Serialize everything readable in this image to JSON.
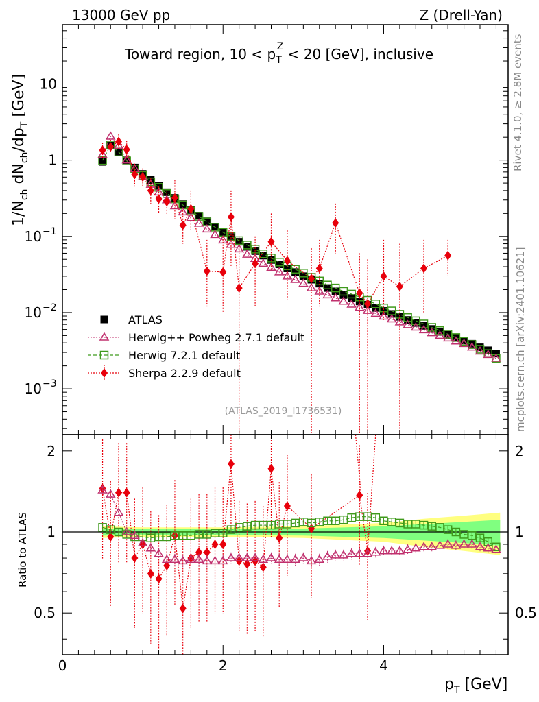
{
  "header": {
    "left": "13000 GeV pp",
    "right": "Z (Drell-Yan)",
    "title": "Toward region, 10 < p",
    "title_sub": "T",
    "title_sup": "Z",
    "title_rest": " < 20 [GeV], inclusive",
    "side_top": "Rivet 4.1.0, ≥ 2.8M events",
    "side_bottom": "mcplots.cern.ch [arXiv:2401.10621]",
    "analysis_id": "(ATLAS_2019_I1736531)"
  },
  "chart_data": {
    "type": "scatter",
    "xlabel": "p",
    "xlabel_sub": "T",
    "xlabel_unit": " [GeV]",
    "ylabel_main": "1/N",
    "ylabel_rest": "ch",
    "ylabel_text": "1/N_ch dN_ch/dp_T [GeV]",
    "ylabel_ratio": "Ratio to ATLAS",
    "xlim": [
      0,
      5.55
    ],
    "ylim_main": [
      0.00025,
      60
    ],
    "ylim_ratio": [
      0.35,
      2.3
    ],
    "x_ticks": [
      0,
      2,
      4
    ],
    "x_tick_labels": [
      "0",
      "2",
      "4"
    ],
    "y_main_tick_labels": [
      {
        "value": 10,
        "base": "10",
        "exp": ""
      },
      {
        "value": 1,
        "base": "1",
        "exp": ""
      },
      {
        "value": 0.1,
        "base": "10",
        "exp": "−1"
      },
      {
        "value": 0.01,
        "base": "10",
        "exp": "−2"
      },
      {
        "value": 0.001,
        "base": "10",
        "exp": "−3"
      }
    ],
    "y_ratio_ticks": [
      0.5,
      1,
      2
    ],
    "y_ratio_tick_labels": [
      "0.5",
      "1",
      "2"
    ],
    "legend": [
      {
        "name": "ATLAS",
        "color": "#000000",
        "marker": "square"
      },
      {
        "name": "Herwig++ Powheg 2.7.1 default",
        "color": "#c0306e",
        "marker": "triangle"
      },
      {
        "name": "Herwig 7.2.1 default",
        "color": "#3f9a1c",
        "marker": "open-square"
      },
      {
        "name": "Sherpa 2.2.9 default",
        "color": "#e8000b",
        "marker": "diamond"
      }
    ],
    "x": [
      0.5,
      0.6,
      0.7,
      0.8,
      0.9,
      1.0,
      1.1,
      1.2,
      1.3,
      1.4,
      1.5,
      1.6,
      1.7,
      1.8,
      1.9,
      2.0,
      2.1,
      2.2,
      2.3,
      2.4,
      2.5,
      2.6,
      2.7,
      2.8,
      2.9,
      3.0,
      3.1,
      3.2,
      3.3,
      3.4,
      3.5,
      3.6,
      3.7,
      3.8,
      3.9,
      4.0,
      4.1,
      4.2,
      4.3,
      4.4,
      4.5,
      4.6,
      4.7,
      4.8,
      4.9,
      5.0,
      5.1,
      5.2,
      5.3,
      5.4
    ],
    "series": [
      {
        "name": "ATLAS",
        "values": [
          0.95,
          1.55,
          1.28,
          1.0,
          0.8,
          0.66,
          0.55,
          0.46,
          0.38,
          0.32,
          0.265,
          0.222,
          0.187,
          0.158,
          0.134,
          0.114,
          0.098,
          0.085,
          0.073,
          0.064,
          0.056,
          0.049,
          0.043,
          0.038,
          0.034,
          0.03,
          0.027,
          0.024,
          0.021,
          0.019,
          0.017,
          0.0155,
          0.014,
          0.0127,
          0.0115,
          0.0105,
          0.0096,
          0.0088,
          0.008,
          0.0073,
          0.0067,
          0.0061,
          0.0056,
          0.0051,
          0.0047,
          0.0043,
          0.0039,
          0.0035,
          0.0032,
          0.0029
        ]
      },
      {
        "name": "Herwig++ Powheg 2.7.1 default",
        "values": [
          1.18,
          2.05,
          1.55,
          1.0,
          0.77,
          0.6,
          0.48,
          0.38,
          0.3,
          0.25,
          0.208,
          0.175,
          0.148,
          0.124,
          0.105,
          0.089,
          0.078,
          0.068,
          0.058,
          0.051,
          0.044,
          0.039,
          0.034,
          0.03,
          0.027,
          0.024,
          0.021,
          0.019,
          0.017,
          0.0155,
          0.014,
          0.0128,
          0.0116,
          0.0106,
          0.0097,
          0.0089,
          0.0082,
          0.0075,
          0.0069,
          0.0064,
          0.0059,
          0.0054,
          0.005,
          0.0046,
          0.0042,
          0.0039,
          0.0035,
          0.0031,
          0.0028,
          0.0025
        ]
      },
      {
        "name": "Herwig 7.2.1 default",
        "values": [
          0.99,
          1.58,
          1.28,
          0.98,
          0.77,
          0.63,
          0.52,
          0.44,
          0.365,
          0.31,
          0.258,
          0.216,
          0.183,
          0.155,
          0.132,
          0.113,
          0.1,
          0.088,
          0.077,
          0.068,
          0.059,
          0.052,
          0.046,
          0.041,
          0.037,
          0.033,
          0.029,
          0.026,
          0.023,
          0.021,
          0.019,
          0.0175,
          0.016,
          0.0145,
          0.013,
          0.0115,
          0.0105,
          0.0095,
          0.0086,
          0.0078,
          0.0071,
          0.0064,
          0.0058,
          0.0052,
          0.0047,
          0.0042,
          0.0038,
          0.0033,
          0.0029,
          0.0025
        ]
      },
      {
        "name": "Sherpa 2.2.9 default",
        "x": [
          0.5,
          0.6,
          0.7,
          0.8,
          0.9,
          1.0,
          1.1,
          1.2,
          1.3,
          1.4,
          1.5,
          1.6,
          1.8,
          2.0,
          2.1,
          2.2,
          2.4,
          2.6,
          2.8,
          3.1,
          3.2,
          3.4,
          3.7,
          3.8,
          4.0,
          4.2,
          4.5,
          4.8
        ],
        "values": [
          1.35,
          1.5,
          1.75,
          1.38,
          0.65,
          0.6,
          0.4,
          0.31,
          0.285,
          0.32,
          0.14,
          0.23,
          0.035,
          0.034,
          0.18,
          0.021,
          0.044,
          0.085,
          0.048,
          0.028,
          0.038,
          0.15,
          0.018,
          0.013,
          0.03,
          0.022,
          0.038,
          0.056
        ],
        "yerr_up": [
          1.7,
          1.85,
          2.2,
          1.8,
          0.9,
          0.78,
          0.58,
          0.45,
          0.4,
          0.55,
          0.22,
          0.4,
          0.09,
          0.1,
          0.4,
          0.1,
          0.1,
          0.2,
          0.12,
          0.07,
          0.09,
          0.27,
          0.06,
          0.05,
          0.09,
          0.08,
          0.09,
          0.09
        ],
        "yerr_down": [
          1.05,
          1.2,
          1.35,
          1.05,
          0.45,
          0.45,
          0.27,
          0.2,
          0.19,
          0.17,
          0.08,
          0.12,
          0.012,
          0.01,
          0.04,
          0.0001,
          0.012,
          0.035,
          0.015,
          0.0001,
          0.012,
          0.06,
          0.0001,
          0.0001,
          0.008,
          0.0001,
          0.01,
          0.03
        ]
      }
    ],
    "ratio": {
      "x": [
        0.5,
        0.6,
        0.7,
        0.8,
        0.9,
        1.0,
        1.1,
        1.2,
        1.3,
        1.4,
        1.5,
        1.6,
        1.7,
        1.8,
        1.9,
        2.0,
        2.1,
        2.2,
        2.3,
        2.4,
        2.5,
        2.6,
        2.7,
        2.8,
        2.9,
        3.0,
        3.1,
        3.2,
        3.3,
        3.4,
        3.5,
        3.6,
        3.7,
        3.8,
        3.9,
        4.0,
        4.1,
        4.2,
        4.3,
        4.4,
        4.5,
        4.6,
        4.7,
        4.8,
        4.9,
        5.0,
        5.1,
        5.2,
        5.3,
        5.4
      ],
      "herwigpp": [
        1.43,
        1.38,
        1.18,
        1.0,
        0.97,
        0.91,
        0.87,
        0.83,
        0.79,
        0.79,
        0.78,
        0.79,
        0.79,
        0.78,
        0.78,
        0.78,
        0.8,
        0.8,
        0.8,
        0.8,
        0.79,
        0.8,
        0.79,
        0.79,
        0.79,
        0.8,
        0.78,
        0.79,
        0.81,
        0.82,
        0.82,
        0.83,
        0.83,
        0.83,
        0.84,
        0.85,
        0.85,
        0.85,
        0.86,
        0.87,
        0.88,
        0.88,
        0.89,
        0.9,
        0.89,
        0.9,
        0.9,
        0.88,
        0.87,
        0.86
      ],
      "herwig7": [
        1.04,
        1.02,
        1.0,
        0.98,
        0.96,
        0.96,
        0.95,
        0.96,
        0.96,
        0.97,
        0.97,
        0.97,
        0.98,
        0.98,
        0.99,
        0.99,
        1.02,
        1.04,
        1.05,
        1.06,
        1.06,
        1.06,
        1.07,
        1.07,
        1.08,
        1.09,
        1.08,
        1.09,
        1.1,
        1.1,
        1.11,
        1.13,
        1.14,
        1.14,
        1.13,
        1.1,
        1.09,
        1.08,
        1.07,
        1.07,
        1.06,
        1.05,
        1.04,
        1.02,
        1.0,
        0.98,
        0.97,
        0.95,
        0.92,
        0.88
      ],
      "sherpa_x": [
        0.5,
        0.6,
        0.7,
        0.8,
        0.9,
        1.0,
        1.1,
        1.2,
        1.3,
        1.4,
        1.5,
        1.6,
        1.7,
        1.8,
        1.9,
        2.0,
        2.1,
        2.2,
        2.3,
        2.4,
        2.5,
        2.6,
        2.7,
        2.8,
        3.1,
        3.7,
        3.8
      ],
      "sherpa": [
        1.45,
        0.96,
        1.4,
        1.4,
        0.8,
        0.9,
        0.7,
        0.67,
        0.75,
        0.97,
        0.52,
        0.8,
        0.84,
        0.84,
        0.9,
        0.9,
        1.79,
        0.78,
        0.76,
        0.78,
        0.74,
        1.72,
        0.95,
        1.25,
        1.03,
        1.37,
        0.85
      ],
      "band_green_x": [
        0.5,
        1.0,
        2.0,
        3.0,
        4.0,
        4.5,
        5.0,
        5.45
      ],
      "band_green_half": [
        0.03,
        0.025,
        0.025,
        0.03,
        0.05,
        0.07,
        0.09,
        0.11
      ],
      "band_yellow_half": [
        0.05,
        0.04,
        0.04,
        0.05,
        0.08,
        0.12,
        0.15,
        0.18
      ]
    }
  }
}
